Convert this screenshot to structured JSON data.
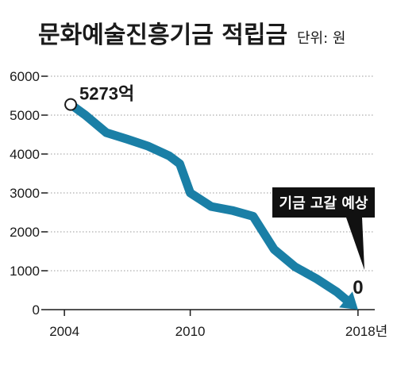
{
  "chart_data": {
    "type": "line",
    "title": "문화예술진흥기금 적립금",
    "unit_label": "단위: 원",
    "x_ticks": [
      {
        "value": 2004,
        "label": "2004"
      },
      {
        "value": 2010,
        "label": "2010"
      },
      {
        "value": 2018,
        "label": "2018년"
      }
    ],
    "y_ticks": [
      0,
      1000,
      2000,
      3000,
      4000,
      5000,
      6000
    ],
    "xlim": [
      2003.2,
      2018.8
    ],
    "ylim": [
      0,
      6000
    ],
    "grid": true,
    "series": [
      {
        "x": [
          2004.3,
          2005.0,
          2006.0,
          2007.0,
          2008.0,
          2009.0,
          2009.5,
          2010.0,
          2011.0,
          2012.0,
          2013.0,
          2014.0,
          2015.0,
          2016.0,
          2017.0,
          2018.0
        ],
        "y": [
          5273,
          5000,
          4550,
          4380,
          4200,
          3950,
          3750,
          3000,
          2650,
          2550,
          2400,
          1550,
          1100,
          800,
          450,
          0
        ],
        "color": "#1a7fa6"
      }
    ],
    "annotations": {
      "start_label": "5273억",
      "end_label": "0",
      "callout": "기금 고갈 예상"
    },
    "colors": {
      "line": "#1a7fa6",
      "callout_bg": "#111111",
      "text": "#1a1a1a"
    }
  }
}
